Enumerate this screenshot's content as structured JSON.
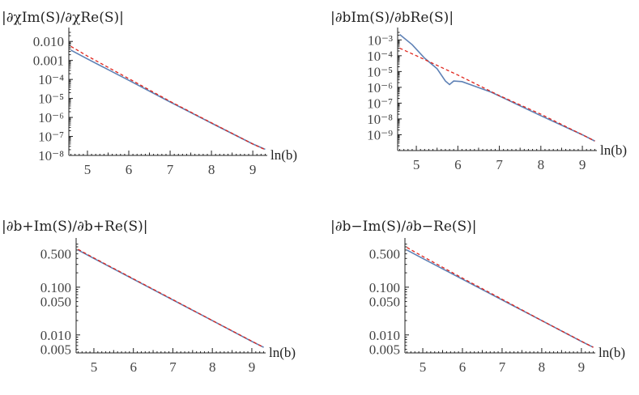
{
  "chart_data": [
    {
      "type": "line",
      "ylabel": "|∂χIm(S)/∂χRe(S)|",
      "xlabel": "ln(b)",
      "yscale": "log",
      "xlim": [
        4.55,
        9.35
      ],
      "ylim": [
        1e-08,
        0.03
      ],
      "x_ticks": [
        "5",
        "6",
        "7",
        "8",
        "9"
      ],
      "y_ticks": [
        {
          "v": 0.01,
          "label": "0.010"
        },
        {
          "v": 0.001,
          "label": "0.001"
        },
        {
          "v": 0.0001,
          "label": "10⁻⁴"
        },
        {
          "v": 1e-05,
          "label": "10⁻⁵"
        },
        {
          "v": 1e-06,
          "label": "10⁻⁶"
        },
        {
          "v": 1e-07,
          "label": "10⁻⁷"
        },
        {
          "v": 1e-08,
          "label": "10⁻⁸"
        }
      ],
      "series": [
        {
          "style": "solid-blue",
          "x": [
            4.6,
            5.0,
            6.0,
            7.0,
            8.0,
            9.0,
            9.3
          ],
          "y": [
            0.0035,
            0.0012,
            9e-05,
            6.5e-06,
            5e-07,
            4e-08,
            2.1e-08
          ]
        },
        {
          "style": "dashed-red",
          "x": [
            4.6,
            5.0,
            6.0,
            7.0,
            8.0,
            9.0,
            9.3
          ],
          "y": [
            0.0055,
            0.0017,
            0.00011,
            7e-06,
            5.2e-07,
            4e-08,
            2e-08
          ]
        }
      ]
    },
    {
      "type": "line",
      "ylabel": "|∂bIm(S)/∂bRe(S)|",
      "xlabel": "ln(b)",
      "yscale": "log",
      "xlim": [
        4.55,
        9.35
      ],
      "ylim": [
        1e-10,
        0.003
      ],
      "x_ticks": [
        "5",
        "6",
        "7",
        "8",
        "9"
      ],
      "y_ticks": [
        {
          "v": 0.001,
          "label": "10⁻³"
        },
        {
          "v": 0.0001,
          "label": "10⁻⁴"
        },
        {
          "v": 1e-05,
          "label": "10⁻⁵"
        },
        {
          "v": 1e-06,
          "label": "10⁻⁶"
        },
        {
          "v": 1e-07,
          "label": "10⁻⁷"
        },
        {
          "v": 1e-08,
          "label": "10⁻⁸"
        },
        {
          "v": 1e-09,
          "label": "10⁻⁹"
        }
      ],
      "series": [
        {
          "style": "solid-blue",
          "x": [
            4.6,
            4.9,
            5.2,
            5.5,
            5.7,
            5.8,
            5.9,
            6.1,
            6.4,
            6.8,
            7.2,
            8.0,
            9.0,
            9.3
          ],
          "y": [
            0.0022,
            0.0005,
            7e-05,
            1.5e-05,
            2.5e-06,
            1.5e-06,
            2.5e-06,
            2.3e-06,
            1.2e-06,
            5e-07,
            1.6e-07,
            1.6e-08,
            1e-09,
            4e-10
          ]
        },
        {
          "style": "dashed-red",
          "x": [
            4.6,
            5.0,
            6.0,
            7.0,
            8.0,
            9.0,
            9.3
          ],
          "y": [
            0.0003,
            0.0001,
            6e-06,
            3e-07,
            2e-08,
            1e-09,
            4e-10
          ]
        }
      ]
    },
    {
      "type": "line",
      "ylabel": "|∂b+Im(S)/∂b+Re(S)|",
      "xlabel": "ln(b)",
      "yscale": "log",
      "xlim": [
        4.55,
        9.35
      ],
      "ylim": [
        0.0042,
        0.85
      ],
      "x_ticks": [
        "5",
        "6",
        "7",
        "8",
        "9"
      ],
      "y_ticks": [
        {
          "v": 0.5,
          "label": "0.500"
        },
        {
          "v": 0.1,
          "label": "0.100"
        },
        {
          "v": 0.05,
          "label": "0.050"
        },
        {
          "v": 0.01,
          "label": "0.010"
        },
        {
          "v": 0.005,
          "label": "0.005"
        }
      ],
      "series": [
        {
          "style": "solid-blue",
          "x": [
            4.6,
            5.0,
            6.0,
            7.0,
            8.0,
            9.0,
            9.3
          ],
          "y": [
            0.6,
            0.4,
            0.147,
            0.054,
            0.02,
            0.0073,
            0.0055
          ]
        },
        {
          "style": "dashed-red",
          "x": [
            4.6,
            5.0,
            6.0,
            7.0,
            8.0,
            9.0,
            9.3
          ],
          "y": [
            0.62,
            0.41,
            0.15,
            0.055,
            0.02,
            0.0074,
            0.0055
          ]
        }
      ]
    },
    {
      "type": "line",
      "ylabel": "|∂b−Im(S)/∂b−Re(S)|",
      "xlabel": "ln(b)",
      "yscale": "log",
      "xlim": [
        4.55,
        9.35
      ],
      "ylim": [
        0.0042,
        0.85
      ],
      "x_ticks": [
        "5",
        "6",
        "7",
        "8",
        "9"
      ],
      "y_ticks": [
        {
          "v": 0.5,
          "label": "0.500"
        },
        {
          "v": 0.1,
          "label": "0.100"
        },
        {
          "v": 0.05,
          "label": "0.050"
        },
        {
          "v": 0.01,
          "label": "0.010"
        },
        {
          "v": 0.005,
          "label": "0.005"
        }
      ],
      "series": [
        {
          "style": "solid-blue",
          "x": [
            4.6,
            5.0,
            6.0,
            7.0,
            8.0,
            9.0,
            9.3
          ],
          "y": [
            0.6,
            0.4,
            0.147,
            0.054,
            0.02,
            0.0073,
            0.0055
          ]
        },
        {
          "style": "dashed-red",
          "x": [
            4.6,
            5.0,
            6.0,
            7.0,
            8.0,
            9.0,
            9.3
          ],
          "y": [
            0.68,
            0.44,
            0.155,
            0.056,
            0.02,
            0.0074,
            0.0055
          ]
        }
      ]
    }
  ]
}
